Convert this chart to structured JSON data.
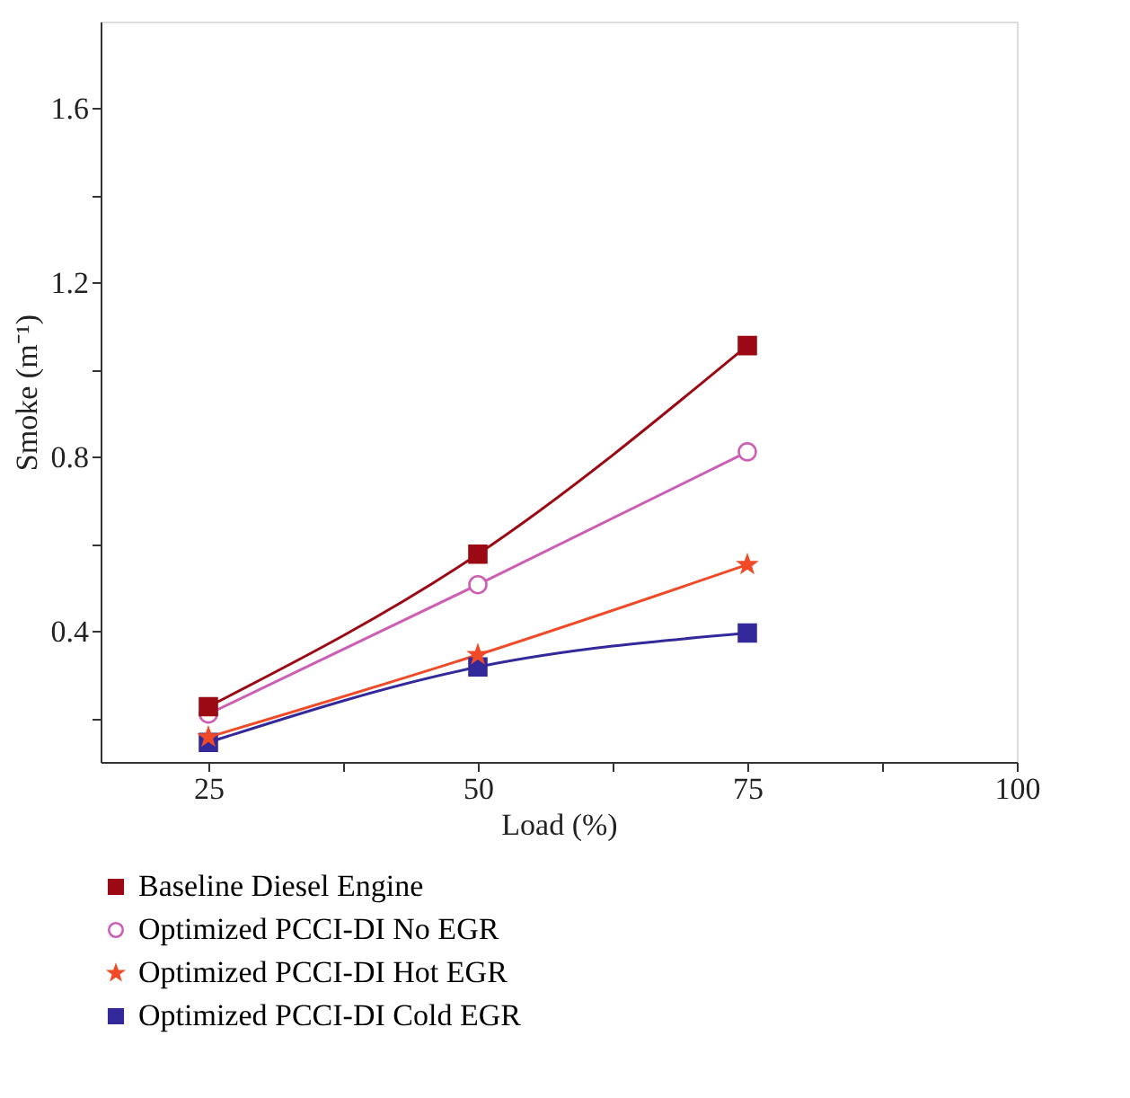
{
  "chart_data": {
    "type": "line",
    "xlabel": "Load (%)",
    "ylabel": "Smoke (m⁻¹)",
    "x": [
      25,
      50,
      75
    ],
    "xlim": [
      15,
      100
    ],
    "xticks": [
      25,
      {
        "value": 37.5,
        "label": null
      },
      50,
      {
        "value": 62.5,
        "label": null
      },
      75,
      {
        "value": 87.5,
        "label": null
      },
      100
    ],
    "ylim": [
      0.1,
      1.8
    ],
    "yticks": [
      {
        "value": 0.2,
        "label": null
      },
      0.4,
      {
        "value": 0.6,
        "label": null
      },
      0.8,
      {
        "value": 1.0,
        "label": null
      },
      1.2,
      {
        "value": 1.4,
        "label": null
      },
      1.6
    ],
    "grid": false,
    "legend": "bottom",
    "series": [
      {
        "name": "Baseline Diesel Engine",
        "color": "#9b0a14",
        "marker": "square",
        "values": [
          0.227,
          0.577,
          1.056
        ]
      },
      {
        "name": "Optimized PCCI-DI No EGR",
        "color": "#cc5fb4",
        "marker": "circle",
        "values": [
          0.21,
          0.507,
          0.812
        ]
      },
      {
        "name": "Optimized PCCI-DI Hot EGR",
        "color": "#f04a28",
        "marker": "star",
        "values": [
          0.157,
          0.346,
          0.553
        ]
      },
      {
        "name": "Optimized PCCI-DI Cold EGR",
        "color": "#33299a",
        "marker": "square",
        "values": [
          0.145,
          0.318,
          0.396
        ]
      }
    ]
  }
}
